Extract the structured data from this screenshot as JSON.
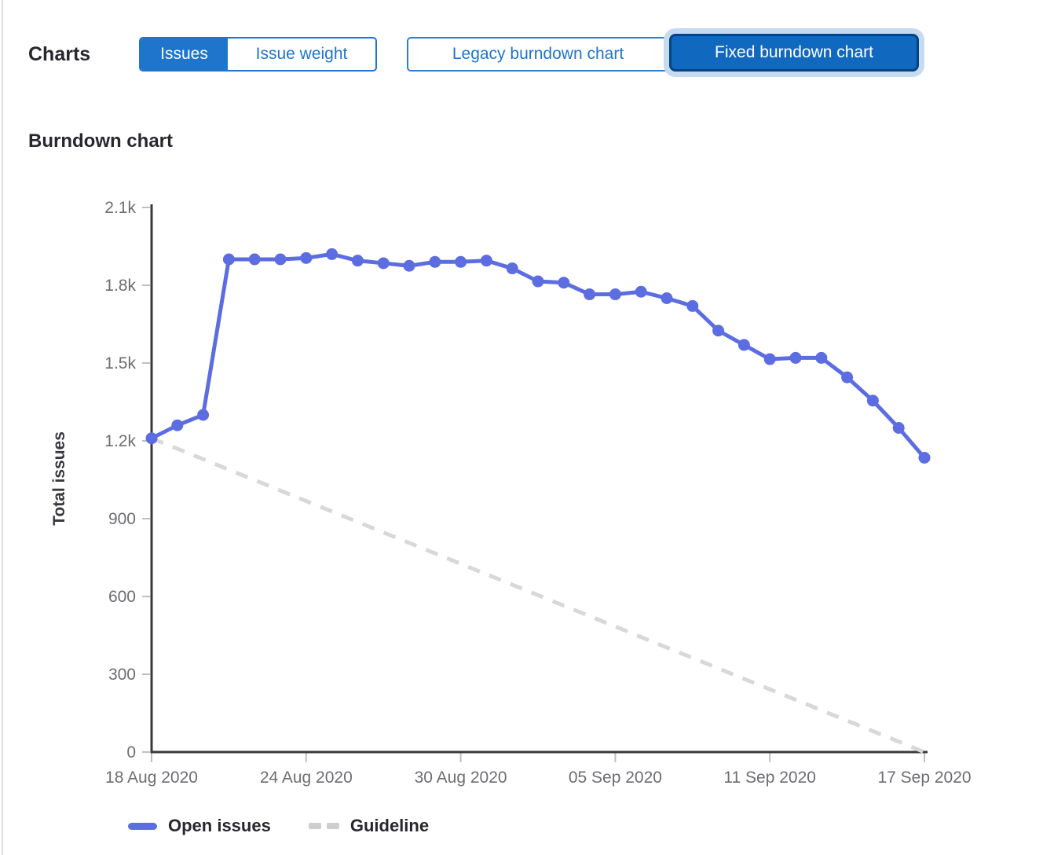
{
  "toolbar": {
    "title": "Charts",
    "metric_toggle": [
      {
        "label": "Issues",
        "selected": true
      },
      {
        "label": "Issue weight",
        "selected": false
      }
    ],
    "version_toggle": [
      {
        "label": "Legacy burndown chart",
        "selected": false
      },
      {
        "label": "Fixed burndown chart",
        "selected": true
      }
    ]
  },
  "section": {
    "title": "Burndown chart"
  },
  "colors": {
    "accent_blue": "#1f75cb",
    "selected_button_bg": "#1168bf",
    "selected_button_border": "#05447e",
    "focus_ring": "#c6daf2",
    "open_issues_line": "#5c6de2",
    "guideline_line": "#d8d8d8",
    "axis_line": "#38383d",
    "tick_mark": "#bfbfc3",
    "tick_label": "#6d6d73",
    "text_dark": "#28272d"
  },
  "chart_data": {
    "type": "line",
    "title": "Burndown chart",
    "xlabel": "",
    "ylabel": "Total issues",
    "ylim": [
      0,
      2100
    ],
    "grid": false,
    "legend_position": "bottom-left",
    "y_ticks": [
      {
        "value": 0,
        "label": "0"
      },
      {
        "value": 300,
        "label": "300"
      },
      {
        "value": 600,
        "label": "600"
      },
      {
        "value": 900,
        "label": "900"
      },
      {
        "value": 1200,
        "label": "1.2k"
      },
      {
        "value": 1500,
        "label": "1.5k"
      },
      {
        "value": 1800,
        "label": "1.8k"
      },
      {
        "value": 2100,
        "label": "2.1k"
      }
    ],
    "x_ticks": [
      {
        "index": 0,
        "label": "18 Aug 2020"
      },
      {
        "index": 6,
        "label": "24 Aug 2020"
      },
      {
        "index": 12,
        "label": "30 Aug 2020"
      },
      {
        "index": 18,
        "label": "05 Sep 2020"
      },
      {
        "index": 24,
        "label": "11 Sep 2020"
      },
      {
        "index": 30,
        "label": "17 Sep 2020"
      }
    ],
    "x": [
      "18 Aug 2020",
      "19 Aug 2020",
      "20 Aug 2020",
      "21 Aug 2020",
      "22 Aug 2020",
      "23 Aug 2020",
      "24 Aug 2020",
      "25 Aug 2020",
      "26 Aug 2020",
      "27 Aug 2020",
      "28 Aug 2020",
      "29 Aug 2020",
      "30 Aug 2020",
      "31 Aug 2020",
      "01 Sep 2020",
      "02 Sep 2020",
      "03 Sep 2020",
      "04 Sep 2020",
      "05 Sep 2020",
      "06 Sep 2020",
      "07 Sep 2020",
      "08 Sep 2020",
      "09 Sep 2020",
      "10 Sep 2020",
      "11 Sep 2020",
      "12 Sep 2020",
      "13 Sep 2020",
      "14 Sep 2020",
      "15 Sep 2020",
      "16 Sep 2020",
      "17 Sep 2020"
    ],
    "series": [
      {
        "name": "Open issues",
        "style": "solid-with-dots",
        "color": "#5c6de2",
        "values": [
          1210,
          1260,
          1300,
          1900,
          1900,
          1900,
          1905,
          1920,
          1895,
          1885,
          1875,
          1890,
          1890,
          1895,
          1865,
          1815,
          1810,
          1765,
          1765,
          1775,
          1750,
          1720,
          1625,
          1570,
          1515,
          1520,
          1520,
          1445,
          1355,
          1250,
          1135
        ]
      },
      {
        "name": "Guideline",
        "style": "dashed",
        "color": "#d8d8d8",
        "points": [
          {
            "x": 0,
            "value": 1210
          },
          {
            "x": 30,
            "value": 0
          }
        ]
      }
    ]
  }
}
